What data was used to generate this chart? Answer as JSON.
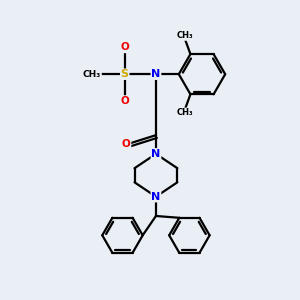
{
  "background_color": "#eaeff5",
  "atom_colors": {
    "C": "#000000",
    "N": "#0000ee",
    "O": "#ee0000",
    "S": "#ccaa00"
  },
  "bond_color": "#000000",
  "line_width": 1.6,
  "figsize": [
    3.0,
    3.0
  ],
  "dpi": 100,
  "xlim": [
    0,
    10
  ],
  "ylim": [
    0,
    10
  ]
}
